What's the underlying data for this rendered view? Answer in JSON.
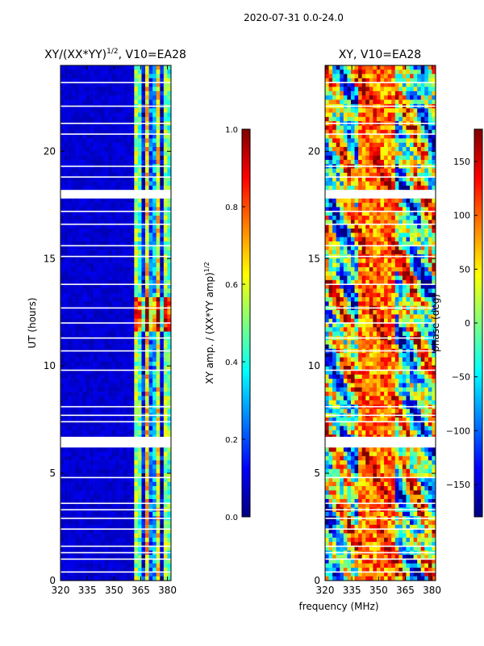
{
  "figure_title": "2020-07-31 0.0-24.0",
  "chart_data": [
    {
      "type": "heatmap",
      "title_main": "XY/(XX*YY)",
      "title_exponent": "1/2",
      "title_suffix": ", V10=EA28",
      "xlabel": "",
      "ylabel": "UT (hours)",
      "xlim": [
        320,
        382
      ],
      "ylim": [
        0,
        24
      ],
      "x_ticks": [
        320,
        335,
        350,
        365,
        380
      ],
      "y_ticks": [
        0,
        5,
        10,
        15,
        20
      ],
      "flagged_bands_hours": [
        [
          6.2,
          6.7
        ],
        [
          17.8,
          18.2
        ]
      ],
      "colorbar": {
        "label_main": "XY amp. / (XX*YY amp)",
        "label_exponent": "1/2",
        "range": [
          0.0,
          1.0
        ],
        "ticks": [
          "0.0",
          "0.2",
          "0.4",
          "0.6",
          "0.8",
          "1.0"
        ],
        "colormap": "jet"
      }
    },
    {
      "type": "heatmap",
      "title": "XY, V10=EA28",
      "xlabel": "frequency (MHz)",
      "ylabel": "",
      "xlim": [
        320,
        382
      ],
      "ylim": [
        0,
        24
      ],
      "x_ticks": [
        320,
        335,
        350,
        365,
        380
      ],
      "y_ticks": [
        0,
        5,
        10,
        15,
        20
      ],
      "flagged_bands_hours": [
        [
          6.2,
          6.7
        ],
        [
          17.8,
          18.2
        ]
      ],
      "colorbar": {
        "label": "phase (deg)",
        "range": [
          -180,
          180
        ],
        "ticks": [
          "150",
          "100",
          "50",
          "0",
          "−50",
          "−100",
          "−150"
        ],
        "tick_values": [
          150,
          100,
          50,
          0,
          -50,
          -100,
          -150
        ],
        "colormap": "jet"
      }
    }
  ],
  "colors": {
    "jet": [
      "#00007f",
      "#0000ff",
      "#007fff",
      "#00ffff",
      "#7fff7f",
      "#ffff00",
      "#ff7f00",
      "#ff0000",
      "#7f0000"
    ]
  }
}
